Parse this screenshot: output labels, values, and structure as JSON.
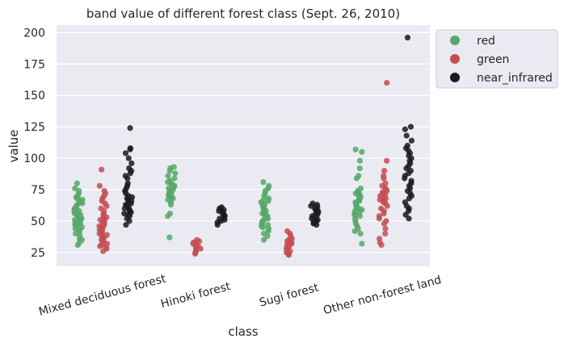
{
  "chart_data": {
    "type": "scatter",
    "subtype": "strip",
    "title": "band value of different forest class (Sept. 26, 2010)",
    "xlabel": "class",
    "ylabel": "value",
    "categories": [
      "Mixed deciduous forest",
      "Hinoki forest",
      "Sugi forest",
      "Other non-forest land"
    ],
    "ylim": [
      14,
      206
    ],
    "yticks": [
      25,
      50,
      75,
      100,
      125,
      150,
      175,
      200
    ],
    "grid": true,
    "legend_position": "outside-right",
    "series": [
      {
        "name": "red",
        "color": "#55a868",
        "groups": [
          [
            31,
            33,
            35,
            36,
            38,
            40,
            41,
            43,
            44,
            45,
            46,
            47,
            48,
            49,
            50,
            50,
            51,
            52,
            52,
            53,
            54,
            55,
            55,
            56,
            57,
            57,
            58,
            59,
            60,
            60,
            61,
            62,
            63,
            64,
            65,
            66,
            67,
            68,
            69,
            70,
            72,
            74,
            76,
            80
          ],
          [
            37,
            54,
            56,
            63,
            65,
            67,
            68,
            69,
            70,
            71,
            72,
            73,
            74,
            75,
            76,
            77,
            78,
            79,
            80,
            81,
            82,
            84,
            86,
            88,
            90,
            92,
            93
          ],
          [
            35,
            38,
            40,
            42,
            44,
            45,
            46,
            47,
            48,
            49,
            50,
            51,
            52,
            53,
            54,
            55,
            56,
            57,
            58,
            59,
            60,
            61,
            62,
            63,
            64,
            65,
            66,
            67,
            68,
            70,
            72,
            74,
            76,
            78,
            81
          ],
          [
            32,
            40,
            42,
            44,
            46,
            48,
            50,
            52,
            54,
            55,
            56,
            57,
            58,
            59,
            60,
            61,
            62,
            63,
            64,
            65,
            66,
            67,
            68,
            69,
            70,
            71,
            72,
            73,
            74,
            76,
            84,
            86,
            92,
            98,
            105,
            107
          ]
        ]
      },
      {
        "name": "green",
        "color": "#c44e52",
        "groups": [
          [
            26,
            28,
            29,
            30,
            31,
            32,
            33,
            34,
            35,
            36,
            37,
            38,
            39,
            40,
            41,
            42,
            43,
            44,
            45,
            46,
            47,
            48,
            49,
            50,
            51,
            52,
            53,
            54,
            55,
            56,
            58,
            60,
            62,
            64,
            66,
            68,
            70,
            72,
            74,
            78,
            91
          ],
          [
            24,
            25,
            26,
            27,
            28,
            29,
            30,
            31,
            32,
            33,
            34,
            35
          ],
          [
            23,
            24,
            25,
            26,
            27,
            28,
            29,
            30,
            31,
            32,
            33,
            34,
            35,
            36,
            38,
            40,
            42
          ],
          [
            31,
            33,
            36,
            40,
            44,
            48,
            50,
            52,
            54,
            56,
            58,
            60,
            62,
            64,
            65,
            66,
            67,
            68,
            69,
            70,
            71,
            72,
            73,
            74,
            75,
            76,
            78,
            80,
            84,
            86,
            90,
            98,
            160
          ]
        ]
      },
      {
        "name": "near_infrared",
        "color": "#1a1a1a",
        "groups": [
          [
            47,
            50,
            52,
            54,
            55,
            56,
            57,
            58,
            59,
            60,
            61,
            62,
            63,
            64,
            65,
            66,
            67,
            68,
            69,
            70,
            72,
            74,
            76,
            78,
            80,
            84,
            86,
            88,
            90,
            92,
            96,
            100,
            104,
            107,
            108,
            124
          ],
          [
            47,
            49,
            50,
            51,
            52,
            53,
            54,
            55,
            56,
            57,
            58,
            59,
            60,
            61
          ],
          [
            47,
            48,
            49,
            50,
            51,
            52,
            53,
            54,
            55,
            56,
            57,
            58,
            59,
            60,
            61,
            62,
            63,
            64
          ],
          [
            52,
            55,
            58,
            60,
            62,
            65,
            68,
            70,
            72,
            74,
            76,
            78,
            80,
            82,
            84,
            86,
            88,
            90,
            92,
            94,
            96,
            98,
            100,
            102,
            104,
            106,
            108,
            110,
            114,
            118,
            123,
            125,
            196
          ]
        ]
      }
    ]
  }
}
